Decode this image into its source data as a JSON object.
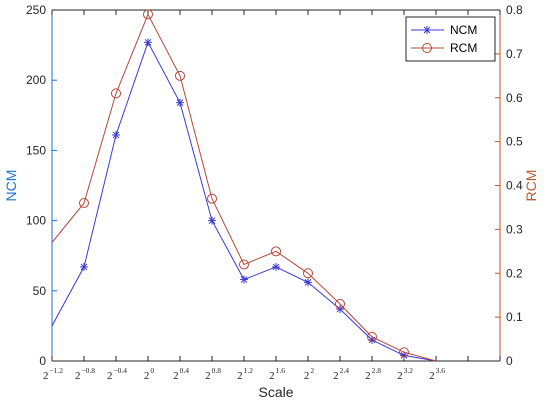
{
  "chart_data": {
    "type": "line",
    "xlabel": "Scale",
    "ylabel_left": "NCM",
    "ylabel_right": "RCM",
    "x_exponents": [
      -1.4,
      -1.2,
      -1.0,
      -0.8,
      -0.6,
      -0.4,
      -0.2,
      0.0,
      0.2,
      0.4,
      0.6,
      0.8,
      1.0,
      1.2,
      1.4,
      1.6,
      1.8,
      2.0,
      2.2,
      2.4,
      2.6,
      2.8,
      3.0,
      3.2,
      3.4,
      3.6,
      3.8,
      4.0,
      4.2,
      4.4,
      4.6
    ],
    "data_x_exponents": [
      -1.2,
      -0.8,
      -0.4,
      0.0,
      0.4,
      0.8,
      1.2,
      1.6,
      2.0,
      2.4,
      2.8,
      3.2,
      3.6,
      4.0,
      4.4
    ],
    "xlim_exponent": [
      -1.2,
      4.4
    ],
    "x_tick_labels": [
      {
        "base": "2",
        "exp": "−1.2"
      },
      {
        "base": "2",
        "exp": "−0.8"
      },
      {
        "base": "2",
        "exp": "−0.4"
      },
      {
        "base": "2",
        "exp": "0"
      },
      {
        "base": "2",
        "exp": "0.4"
      },
      {
        "base": "2",
        "exp": "0.8"
      },
      {
        "base": "2",
        "exp": "1.2"
      },
      {
        "base": "2",
        "exp": "1.6"
      },
      {
        "base": "2",
        "exp": "2"
      },
      {
        "base": "2",
        "exp": "2.4"
      },
      {
        "base": "2",
        "exp": "2.8"
      },
      {
        "base": "2",
        "exp": "3.2"
      },
      {
        "base": "2",
        "exp": "3.6"
      }
    ],
    "y_left": {
      "lim": [
        0,
        250
      ],
      "ticks": [
        0,
        50,
        100,
        150,
        200,
        250
      ],
      "tick_labels": [
        "0",
        "50",
        "100",
        "150",
        "200",
        "250"
      ]
    },
    "y_right": {
      "lim": [
        0,
        0.8
      ],
      "ticks": [
        0,
        0.1,
        0.2,
        0.3,
        0.4,
        0.5,
        0.6,
        0.7,
        0.8
      ],
      "tick_labels": [
        "0",
        "0.1",
        "0.2",
        "0.3",
        "0.4",
        "0.5",
        "0.6",
        "0.7",
        "0.8"
      ]
    },
    "series": [
      {
        "name": "NCM",
        "axis": "left",
        "marker": "asterisk",
        "color": "#3a3ad6",
        "values": [
          25,
          67,
          161,
          227,
          184,
          100,
          58,
          67,
          56,
          37,
          15,
          4,
          0
        ],
        "x_exponents_used": [
          -1.2,
          -0.8,
          -0.4,
          0.0,
          0.4,
          0.8,
          1.2,
          1.6,
          2.0,
          2.4,
          2.8,
          3.2,
          3.6
        ]
      },
      {
        "name": "RCM",
        "axis": "right",
        "marker": "circle",
        "color": "#b5483a",
        "values": [
          0.27,
          0.36,
          0.61,
          0.79,
          0.65,
          0.37,
          0.22,
          0.25,
          0.2,
          0.13,
          0.055,
          0.02,
          0.0
        ],
        "x_exponents_used": [
          -1.2,
          -0.8,
          -0.4,
          0.0,
          0.4,
          0.8,
          1.2,
          1.6,
          2.0,
          2.4,
          2.8,
          3.2,
          3.6
        ]
      }
    ],
    "legend": {
      "position": "top-right",
      "entries": [
        "NCM",
        "RCM"
      ]
    },
    "grid": false,
    "colors": {
      "left_axis": "#1f6fd6",
      "right_axis": "#c0572b",
      "ncm": "#3a3ad6",
      "rcm": "#b5483a"
    }
  }
}
